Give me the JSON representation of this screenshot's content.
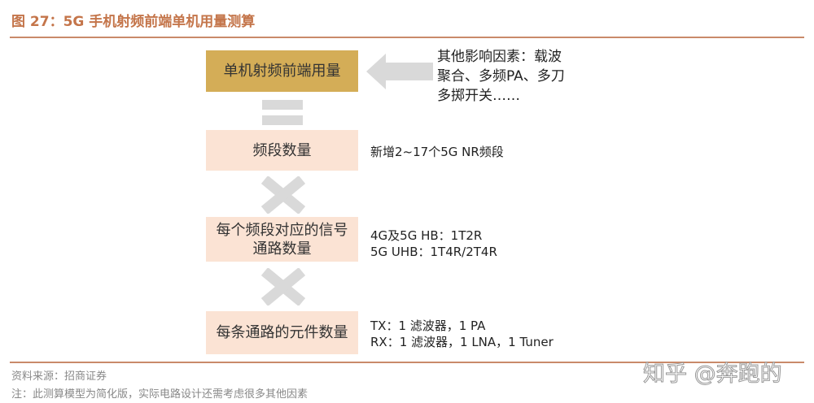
{
  "title": "图 27：5G 手机射频前端单机用量测算",
  "boxes": [
    "单机射频前端用量",
    "频段数量",
    "每个频段对应的信号通路数量",
    "每条通路的元件数量"
  ],
  "notes": {
    "other": [
      "其他影响因素：载波",
      "聚合、多频PA、多刀",
      "多掷开关……"
    ],
    "bands": "新增2~17个5G NR频段",
    "paths": [
      "4G及5G HB：1T2R",
      "5G UHB：1T4R/2T4R"
    ],
    "components": [
      "TX：1 滤波器，1 PA",
      "RX：1 滤波器，1 LNA，1 Tuner"
    ]
  },
  "footer": {
    "source": "资料来源：招商证券",
    "remark": "注：此测算模型为简化版，实际电路设计还需考虑很多其他因素"
  },
  "watermark": "知乎 @奔跑的",
  "colors": {
    "accent": "#c4754a",
    "top_box": "#d4ad57",
    "box": "#fbe3d4",
    "symbol": "#d9d9d9"
  }
}
